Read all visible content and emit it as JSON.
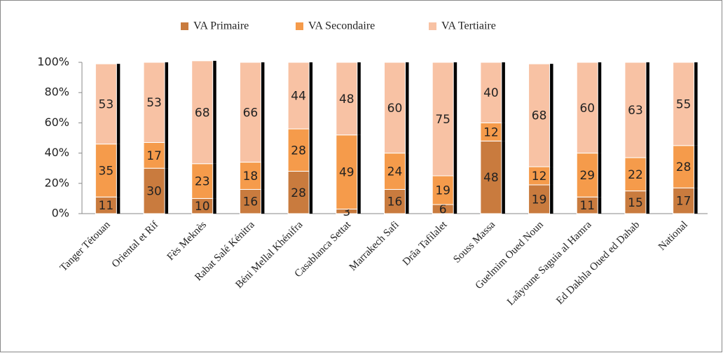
{
  "chart_data": {
    "type": "stacked_bar",
    "categories": [
      "Tanger Tétouan",
      "Oriental et Rif",
      "Fès Meknès",
      "Rabat Salé Kénitra",
      "Béni Mellal Khénifra",
      "Casablanca Settat",
      "Marrakech Safi",
      "Drâa Tafilalet",
      "Souss Massa",
      "Guelmim Oued Noun",
      "Laâyoune Saguia al Hamra",
      "Ed Dakhla Oued ed Dahab",
      "National"
    ],
    "series": [
      {
        "name": "VA Primaire",
        "color": "#c97b3e",
        "values": [
          11,
          30,
          10,
          16,
          28,
          3,
          16,
          6,
          48,
          19,
          11,
          15,
          17
        ]
      },
      {
        "name": "VA Secondaire",
        "color": "#f59b4b",
        "values": [
          35,
          17,
          23,
          18,
          28,
          49,
          24,
          19,
          12,
          12,
          29,
          22,
          28
        ]
      },
      {
        "name": "VA Tertiaire",
        "color": "#f8c2a4",
        "values": [
          53,
          53,
          68,
          66,
          44,
          48,
          60,
          75,
          40,
          68,
          60,
          63,
          55
        ]
      }
    ],
    "ylim": [
      0,
      100
    ],
    "yticks": [
      {
        "value": 0,
        "label": "0%"
      },
      {
        "value": 20,
        "label": "20%"
      },
      {
        "value": 40,
        "label": "40%"
      },
      {
        "value": 60,
        "label": "60%"
      },
      {
        "value": 80,
        "label": "80%"
      },
      {
        "value": 100,
        "label": "100%"
      }
    ]
  }
}
